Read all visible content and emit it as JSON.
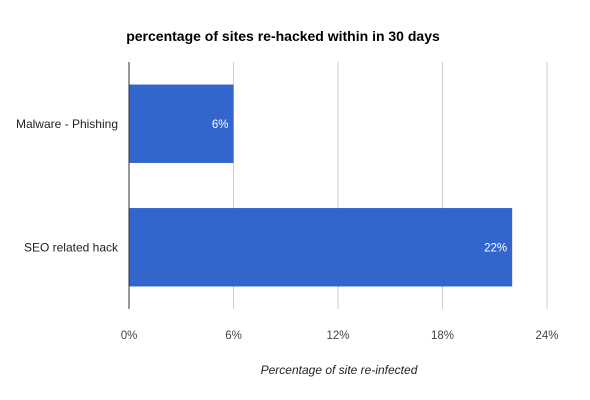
{
  "chart_data": {
    "type": "bar",
    "orientation": "horizontal",
    "title": "percentage of sites re-hacked within in 30 days",
    "xlabel": "Percentage of site re-infected",
    "ylabel": "",
    "categories": [
      "Malware - Phishing",
      "SEO related hack"
    ],
    "values": [
      6,
      22
    ],
    "data_labels": [
      "6%",
      "22%"
    ],
    "xlim": [
      0,
      24
    ],
    "ticks": [
      "0%",
      "6%",
      "12%",
      "18%",
      "24%"
    ],
    "grid": true,
    "legend": "none",
    "bar_color": "#3366cc"
  }
}
